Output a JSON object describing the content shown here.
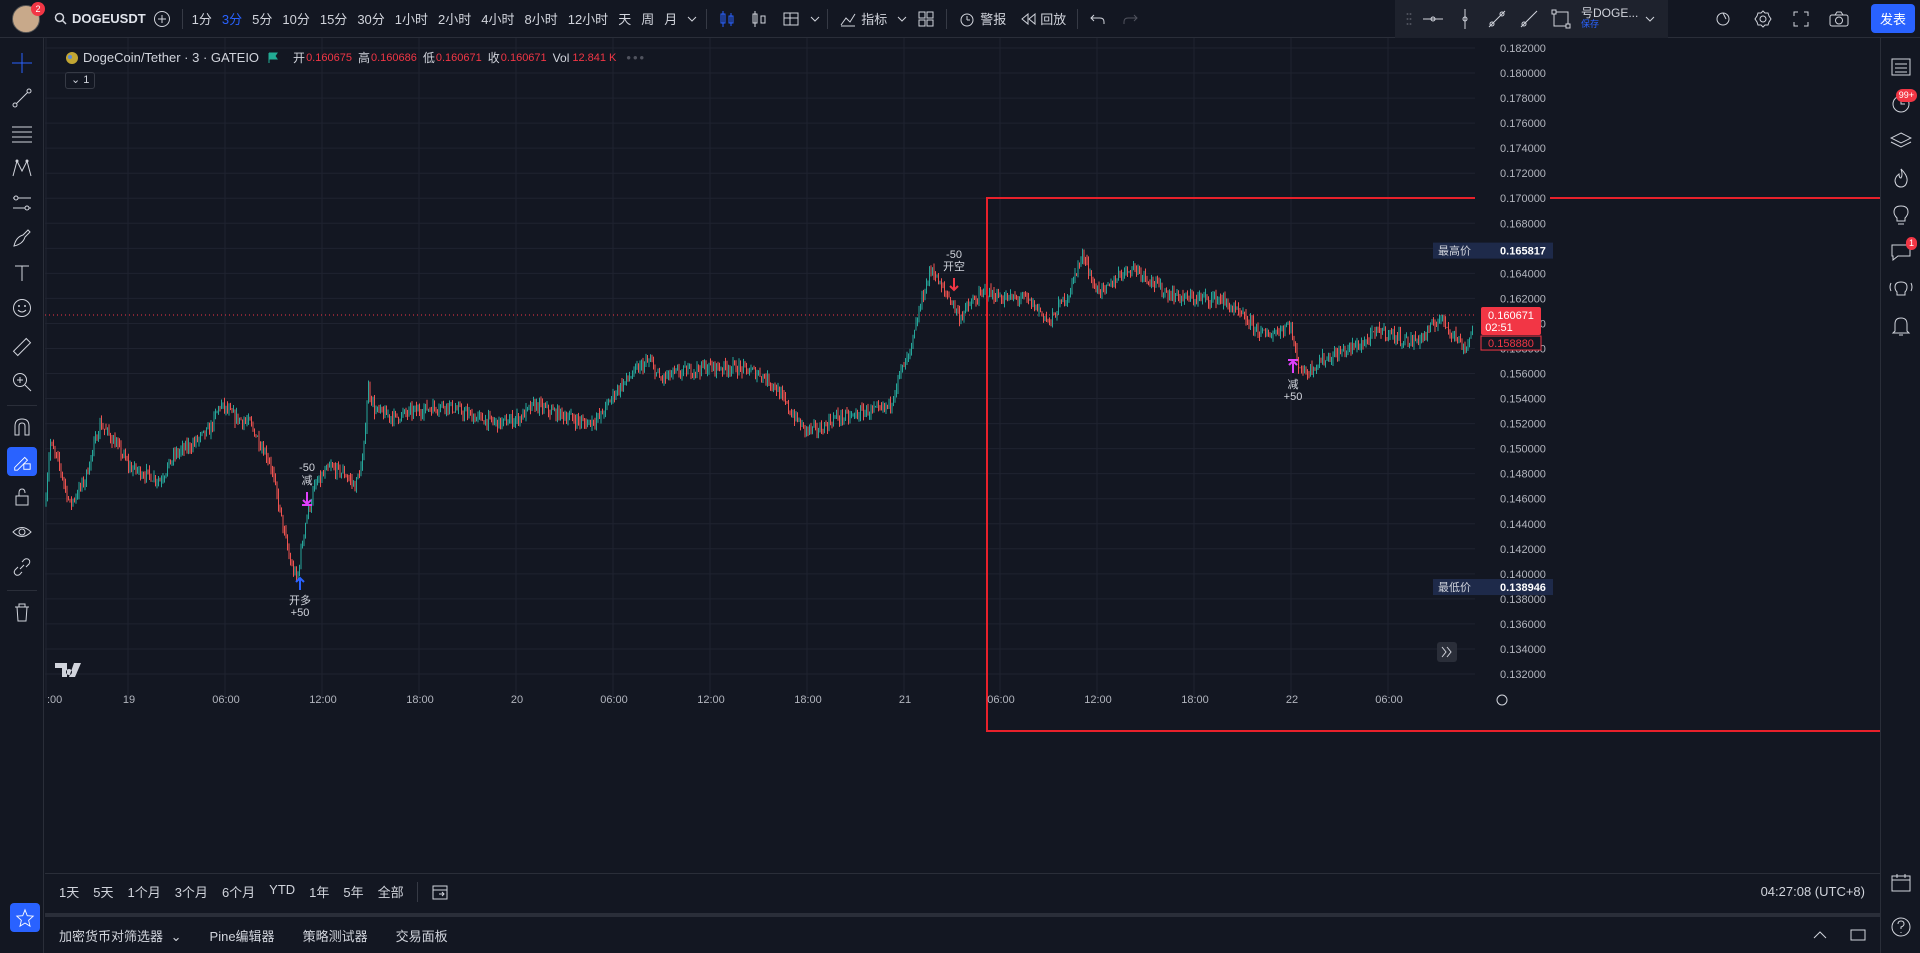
{
  "topbar": {
    "avatar_badge": "2",
    "symbol": "DOGEUSDT",
    "intervals": [
      "1分",
      "3分",
      "5分",
      "10分",
      "15分",
      "30分",
      "1小时",
      "2小时",
      "4小时",
      "8小时",
      "12小时",
      "天",
      "周",
      "月"
    ],
    "active_interval": "3分",
    "indicators_label": "指标",
    "alert_label": "警报",
    "replay_label": "回放",
    "layout_name": "号DOGE...",
    "layout_sub": "保存",
    "publish_label": "发表"
  },
  "legend": {
    "title": "DogeCoin/Tether · 3 · GATEIO",
    "open_label": "开",
    "open": "0.160675",
    "high_label": "高",
    "high": "0.160686",
    "low_label": "低",
    "low": "0.160671",
    "close_label": "收",
    "close": "0.160671",
    "vol_label": "Vol",
    "vol": "12.841 K",
    "collapse": "1"
  },
  "price_axis": {
    "ticks": [
      "0.182000",
      "0.180000",
      "0.178000",
      "0.176000",
      "0.174000",
      "0.172000",
      "0.170000",
      "0.168000",
      "0.166000",
      "0.164000",
      "0.162000",
      "0.160000",
      "0.158000",
      "0.156000",
      "0.154000",
      "0.152000",
      "0.150000",
      "0.148000",
      "0.146000",
      "0.144000",
      "0.142000",
      "0.140000",
      "0.138000",
      "0.136000",
      "0.134000",
      "0.132000"
    ],
    "highest_label": "最高价",
    "highest": "0.165817",
    "lowest_label": "最低价",
    "lowest": "0.138946",
    "last_price": "0.160671",
    "countdown": "02:51",
    "prev_price": "0.158880"
  },
  "time_axis": {
    "labels": [
      ":00",
      "19",
      "06:00",
      "12:00",
      "18:00",
      "20",
      "06:00",
      "12:00",
      "18:00",
      "21",
      "06:00",
      "12:00",
      "18:00",
      "22",
      "06:00"
    ]
  },
  "markers": {
    "m1_top": "-50",
    "m1_bottom": "减",
    "m2_label": "开多",
    "m2_qty": "+50",
    "m3_top": "-50",
    "m3_label": "开空",
    "m4_label": "减",
    "m4_qty": "+50"
  },
  "range": {
    "items": [
      "1天",
      "5天",
      "1个月",
      "3个月",
      "6个月",
      "YTD",
      "1年",
      "5年",
      "全部"
    ],
    "clock": "04:27:08 (UTC+8)"
  },
  "bottom_tabs": [
    "加密货币对筛选器",
    "Pine编辑器",
    "策略测试器",
    "交易面板"
  ],
  "rightbar": {
    "badge1": "99+",
    "badge2": "1"
  },
  "chart_data": {
    "type": "candlestick",
    "price_min": 0.13,
    "price_max": 0.183,
    "highest": 0.165817,
    "lowest": 0.138946,
    "last": 0.160671,
    "up_color": "#26a69a",
    "down_color": "#ef5350",
    "path": [
      [
        0,
        0.1455
      ],
      [
        5,
        0.1505
      ],
      [
        15,
        0.1485
      ],
      [
        25,
        0.1455
      ],
      [
        40,
        0.1475
      ],
      [
        55,
        0.152
      ],
      [
        70,
        0.1505
      ],
      [
        85,
        0.1485
      ],
      [
        100,
        0.148
      ],
      [
        115,
        0.1475
      ],
      [
        130,
        0.1495
      ],
      [
        150,
        0.1505
      ],
      [
        165,
        0.1515
      ],
      [
        175,
        0.1535
      ],
      [
        190,
        0.1525
      ],
      [
        205,
        0.152
      ],
      [
        215,
        0.1505
      ],
      [
        225,
        0.149
      ],
      [
        235,
        0.145
      ],
      [
        245,
        0.141
      ],
      [
        252,
        0.1395
      ],
      [
        260,
        0.144
      ],
      [
        270,
        0.147
      ],
      [
        285,
        0.1485
      ],
      [
        300,
        0.148
      ],
      [
        310,
        0.147
      ],
      [
        318,
        0.149
      ],
      [
        323,
        0.155
      ],
      [
        330,
        0.153
      ],
      [
        350,
        0.1525
      ],
      [
        370,
        0.153
      ],
      [
        400,
        0.1535
      ],
      [
        430,
        0.1525
      ],
      [
        455,
        0.152
      ],
      [
        475,
        0.1525
      ],
      [
        490,
        0.1535
      ],
      [
        505,
        0.153
      ],
      [
        525,
        0.1525
      ],
      [
        540,
        0.152
      ],
      [
        555,
        0.1525
      ],
      [
        570,
        0.1545
      ],
      [
        582,
        0.1555
      ],
      [
        595,
        0.1565
      ],
      [
        605,
        0.157
      ],
      [
        615,
        0.1555
      ],
      [
        630,
        0.156
      ],
      [
        660,
        0.1565
      ],
      [
        690,
        0.1565
      ],
      [
        715,
        0.156
      ],
      [
        730,
        0.155
      ],
      [
        745,
        0.153
      ],
      [
        760,
        0.1515
      ],
      [
        775,
        0.1515
      ],
      [
        790,
        0.1525
      ],
      [
        805,
        0.1525
      ],
      [
        820,
        0.153
      ],
      [
        835,
        0.153
      ],
      [
        845,
        0.1535
      ],
      [
        855,
        0.156
      ],
      [
        865,
        0.1575
      ],
      [
        877,
        0.162
      ],
      [
        887,
        0.1645
      ],
      [
        895,
        0.163
      ],
      [
        905,
        0.162
      ],
      [
        915,
        0.1605
      ],
      [
        925,
        0.1615
      ],
      [
        940,
        0.1625
      ],
      [
        960,
        0.162
      ],
      [
        980,
        0.162
      ],
      [
        995,
        0.161
      ],
      [
        1005,
        0.16
      ],
      [
        1015,
        0.1615
      ],
      [
        1025,
        0.1625
      ],
      [
        1032,
        0.1645
      ],
      [
        1040,
        0.1655
      ],
      [
        1048,
        0.163
      ],
      [
        1060,
        0.1625
      ],
      [
        1075,
        0.164
      ],
      [
        1090,
        0.1645
      ],
      [
        1105,
        0.1635
      ],
      [
        1120,
        0.1625
      ],
      [
        1140,
        0.162
      ],
      [
        1160,
        0.162
      ],
      [
        1175,
        0.162
      ],
      [
        1190,
        0.161
      ],
      [
        1205,
        0.16
      ],
      [
        1220,
        0.159
      ],
      [
        1235,
        0.1595
      ],
      [
        1245,
        0.16
      ],
      [
        1252,
        0.157
      ],
      [
        1260,
        0.156
      ],
      [
        1275,
        0.157
      ],
      [
        1290,
        0.1575
      ],
      [
        1305,
        0.158
      ],
      [
        1320,
        0.1585
      ],
      [
        1335,
        0.1595
      ],
      [
        1350,
        0.159
      ],
      [
        1365,
        0.1585
      ],
      [
        1380,
        0.159
      ],
      [
        1395,
        0.1605
      ],
      [
        1410,
        0.159
      ],
      [
        1420,
        0.158
      ],
      [
        1428,
        0.1595
      ]
    ]
  }
}
